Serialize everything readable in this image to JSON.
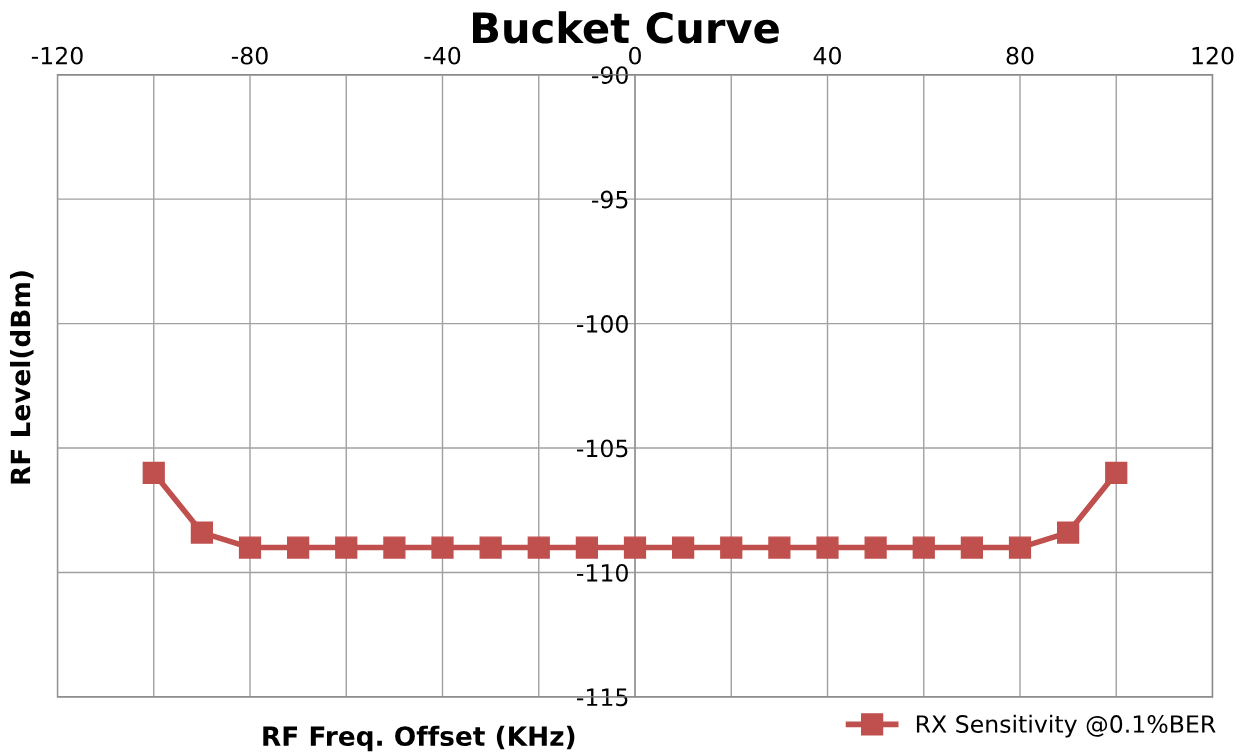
{
  "chart_data": {
    "type": "line",
    "title": "Bucket Curve",
    "xlabel": "RF Freq. Offset (KHz)",
    "ylabel": "RF Level(dBm)",
    "x": [
      -100,
      -90,
      -80,
      -70,
      -60,
      -50,
      -40,
      -30,
      -20,
      -10,
      0,
      10,
      20,
      30,
      40,
      50,
      60,
      70,
      80,
      90,
      100
    ],
    "series": [
      {
        "name": "RX Sensitivity @0.1%BER",
        "color": "#c0504d",
        "values": [
          -106,
          -108.4,
          -109,
          -109,
          -109,
          -109,
          -109,
          -109,
          -109,
          -109,
          -109,
          -109,
          -109,
          -109,
          -109,
          -109,
          -109,
          -109,
          -109,
          -108.4,
          -106
        ]
      }
    ],
    "xlim": [
      -120,
      120
    ],
    "xticks": [
      -120,
      {
        "value": -100,
        "label": null
      },
      -80,
      {
        "value": -60,
        "label": null
      },
      -40,
      {
        "value": -20,
        "label": null
      },
      0,
      {
        "value": 20,
        "label": null
      },
      40,
      {
        "value": 60,
        "label": null
      },
      80,
      {
        "value": 100,
        "label": null
      },
      120
    ],
    "ylim": [
      -115,
      -90
    ],
    "yticks": [
      -115,
      -110,
      -105,
      -100,
      -95,
      -90
    ],
    "grid": true,
    "legend": "bottom right",
    "marker": "square",
    "line_style": "solid"
  }
}
